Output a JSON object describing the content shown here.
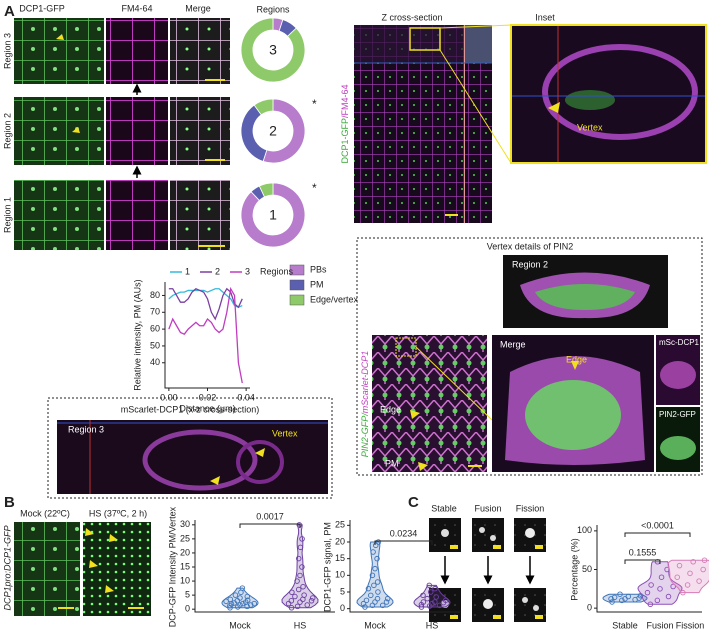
{
  "panel_labels": [
    "A",
    "B",
    "C"
  ],
  "panel_a": {
    "columns": [
      "DCP1-GFP",
      "FM4-64",
      "Merge"
    ],
    "rows": [
      "Region 3",
      "Region 2",
      "Region 1"
    ],
    "inset_box": {
      "title": "mScarlet-DCP1 (x-z cross-section)",
      "region": "Region 3",
      "label": "Vertex"
    },
    "z_section": {
      "title": "Z cross-section",
      "stain": [
        "DCP1-GFP",
        "/FM4-64"
      ],
      "inset_title": "Inset",
      "inset_label": "Vertex"
    },
    "pin2": {
      "title": "Vertex details of PIN2",
      "region": "Region 2",
      "stain": [
        "PIN2-GFP/",
        "mScarlet-DCP1"
      ],
      "edge": "Edge",
      "pm": "PM",
      "merge": "Merge",
      "merge_label": "Edge",
      "channels": [
        "mSc-DCP1",
        "PIN2-GFP"
      ]
    }
  },
  "panel_b": {
    "reporter": "DCP1pro:DCP1-GFP",
    "conditions": [
      "Mock (22ºC)",
      "HS (37ºC, 2 h)"
    ]
  },
  "panel_c": {
    "events": [
      "Stable",
      "Fusion",
      "Fission"
    ]
  },
  "chart_data": [
    {
      "type": "donut",
      "title": "Regions",
      "categories": [
        "PBs",
        "PM",
        "Edge/vertex"
      ],
      "colors": [
        "#b77ccc",
        "#5b5fb0",
        "#8fca6a"
      ],
      "rings": [
        {
          "label": "3",
          "values": [
            5,
            8,
            87
          ]
        },
        {
          "label": "2",
          "values": [
            55,
            35,
            10
          ],
          "annotation": "*"
        },
        {
          "label": "1",
          "values": [
            88,
            5,
            7
          ],
          "annotation": "*"
        }
      ]
    },
    {
      "type": "line",
      "xlabel": "Distance (μm)",
      "ylabel": "Relative intensity, PM (AUs)",
      "legend_title": "Regions",
      "x": [
        0,
        0.002,
        0.004,
        0.006,
        0.008,
        0.01,
        0.012,
        0.014,
        0.016,
        0.018,
        0.02,
        0.022,
        0.024,
        0.026,
        0.028,
        0.03,
        0.032,
        0.034,
        0.036,
        0.038
      ],
      "series": [
        {
          "name": "1",
          "color": "#33bbdd",
          "values": [
            78,
            80,
            81,
            82,
            82,
            83,
            83,
            83,
            83,
            83,
            82,
            83,
            84,
            84,
            82,
            80,
            78,
            74,
            73,
            74
          ]
        },
        {
          "name": "2",
          "color": "#7a3fa0",
          "values": [
            84,
            84,
            80,
            76,
            76,
            78,
            82,
            84,
            83,
            82,
            78,
            70,
            66,
            72,
            80,
            84,
            82,
            75,
            73,
            78
          ]
        },
        {
          "name": "3",
          "color": "#c03cc0",
          "values": [
            60,
            66,
            62,
            58,
            57,
            60,
            62,
            64,
            62,
            62,
            66,
            64,
            60,
            58,
            60,
            70,
            84,
            80,
            40,
            28
          ]
        }
      ],
      "xlim": [
        -0.002,
        0.042
      ],
      "xticks": [
        {
          "value": 0,
          "label": "0.00"
        },
        {
          "value": 0.02,
          "label": "0.02"
        },
        {
          "value": 0.04,
          "label": "0.04"
        }
      ],
      "ylim": [
        25,
        88
      ],
      "yticks": [
        40,
        50,
        60,
        70,
        80
      ]
    },
    {
      "type": "violin",
      "ylabel": "DCP-GFP Intensity PM/Vertex",
      "categories": [
        "Mock",
        "HS"
      ],
      "colors": [
        "#3f74b8",
        "#6b3fa0"
      ],
      "values": [
        [
          0.5,
          0.8,
          1,
          1.2,
          1.5,
          1.5,
          1.8,
          2,
          2,
          2.2,
          2.5,
          2.8,
          3,
          3.2,
          3.5,
          4,
          4.5,
          5,
          6,
          7.5
        ],
        [
          0.5,
          1,
          1.5,
          2,
          2.5,
          3,
          3,
          3.5,
          4,
          4.5,
          5,
          6,
          7,
          8,
          10,
          12,
          15,
          18,
          22,
          25,
          30
        ]
      ],
      "ylim": [
        -1,
        31
      ],
      "yticks": [
        0,
        5,
        10,
        15,
        20,
        25,
        30
      ],
      "comparisons": [
        "0.0017"
      ]
    },
    {
      "type": "violin",
      "ylabel": "DCP1-GFP signal, PM",
      "categories": [
        "Mock",
        "HS"
      ],
      "colors": [
        "#3f74b8",
        "#6b3fa0"
      ],
      "values": [
        [
          0.5,
          1,
          1,
          1.5,
          2,
          2,
          2.5,
          3,
          3,
          4,
          5,
          6,
          7,
          8,
          10,
          12,
          15,
          17,
          19,
          20
        ],
        [
          0.5,
          0.8,
          1,
          1.2,
          1.5,
          1.8,
          2,
          2,
          2.5,
          3,
          3.5,
          4,
          5,
          6,
          7
        ]
      ],
      "ylim": [
        -1,
        26
      ],
      "yticks": [
        0,
        5,
        10,
        15,
        20,
        25
      ],
      "comparisons": [
        "0.0234"
      ]
    },
    {
      "type": "violin",
      "ylabel": "Percentage (%)",
      "categories": [
        "Stable",
        "Fusion",
        "Fission"
      ],
      "colors": [
        "#3f74b8",
        "#8e4fb8",
        "#d77bb8"
      ],
      "values": [
        [
          8,
          10,
          11,
          12,
          12,
          13,
          14,
          15,
          16,
          18
        ],
        [
          5,
          10,
          15,
          20,
          25,
          28,
          30,
          40,
          50,
          60
        ],
        [
          20,
          30,
          35,
          40,
          45,
          50,
          55,
          60,
          62
        ]
      ],
      "ylim": [
        -5,
        105
      ],
      "yticks": [
        0,
        50,
        100
      ],
      "comparisons": [
        "0.1555",
        "<0.0001"
      ]
    }
  ]
}
